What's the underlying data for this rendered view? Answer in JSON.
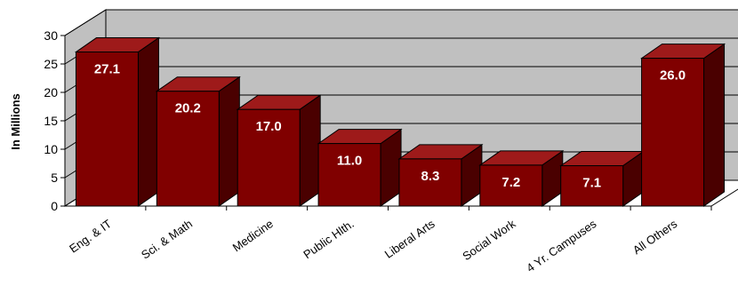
{
  "chart_data": {
    "type": "bar",
    "three_d": true,
    "title": "",
    "xlabel": "",
    "ylabel": "In Millions",
    "ylim": [
      0,
      30
    ],
    "yticks": [
      0,
      5,
      10,
      15,
      20,
      25,
      30
    ],
    "grid": true,
    "legend": "none",
    "categories": [
      "Eng. & IT",
      "Sci. & Math",
      "Medicine",
      "Public Hlth.",
      "Liberal Arts",
      "Social Work",
      "4 Yr. Campuses",
      "All Others"
    ],
    "values": [
      27.1,
      20.2,
      17.0,
      11.0,
      8.3,
      7.2,
      7.1,
      26.0
    ],
    "data_labels": [
      "27.1",
      "20.2",
      "17.0",
      "11.0",
      "8.3",
      "7.2",
      "7.1",
      "26.0"
    ],
    "colors": {
      "bar_front": "#800000",
      "bar_top": "#9e1a1a",
      "bar_side": "#4a0000",
      "back_wall": "#c0c0c0",
      "floor": "#ffffff",
      "gridline": "#000000",
      "label_text": "#ffffff"
    }
  }
}
